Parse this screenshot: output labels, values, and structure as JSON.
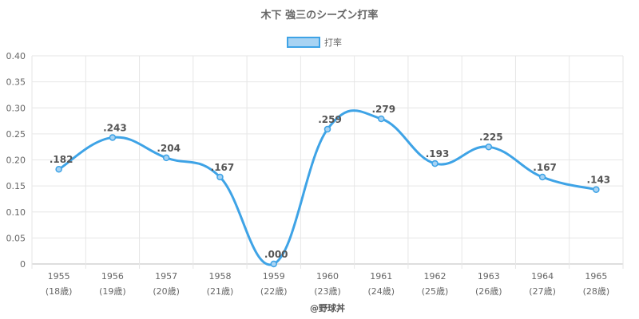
{
  "chart_data": {
    "type": "line",
    "title": "木下 強三のシーズン打率",
    "legend": "打率",
    "legend_position": "top",
    "categories": [
      "1955",
      "1956",
      "1957",
      "1958",
      "1959",
      "1960",
      "1961",
      "1962",
      "1963",
      "1964",
      "1965"
    ],
    "ages": [
      "(18歳)",
      "(19歳)",
      "(20歳)",
      "(21歳)",
      "(22歳)",
      "(23歳)",
      "(24歳)",
      "(25歳)",
      "(26歳)",
      "(27歳)",
      "(28歳)"
    ],
    "series": [
      {
        "name": "打率",
        "values": [
          0.182,
          0.243,
          0.204,
          0.167,
          0.0,
          0.259,
          0.279,
          0.193,
          0.225,
          0.167,
          0.143
        ],
        "labels": [
          ".182",
          ".243",
          ".204",
          ".167",
          ".000",
          ".259",
          ".279",
          ".193",
          ".225",
          ".167",
          ".143"
        ]
      }
    ],
    "ylim": [
      0,
      0.4
    ],
    "yticks": [
      "0",
      "0.05",
      "0.10",
      "0.15",
      "0.20",
      "0.25",
      "0.30",
      "0.35",
      "0.40"
    ],
    "grid": true,
    "line_color": "#3ea3e6",
    "fill_color": "#a8d3f3"
  },
  "credit": "@野球丼"
}
